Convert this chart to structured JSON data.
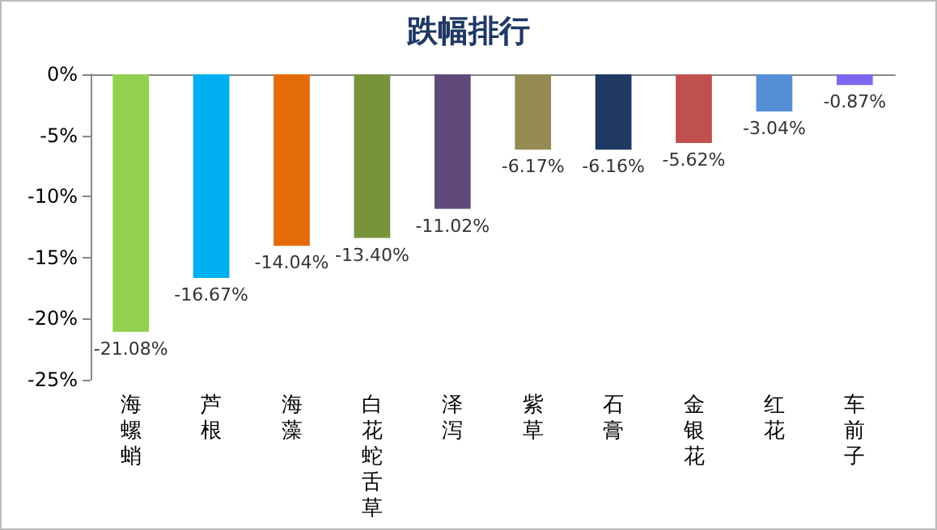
{
  "chart_data": {
    "type": "bar",
    "title": "跌幅排行",
    "categories": [
      "海螺蛸",
      "芦根",
      "海藻",
      "白花蛇舌草",
      "泽泻",
      "紫草",
      "石膏",
      "金银花",
      "红花",
      "车前子"
    ],
    "values": [
      -21.08,
      -16.67,
      -14.04,
      -13.4,
      -11.02,
      -6.17,
      -6.16,
      -5.62,
      -3.04,
      -0.87
    ],
    "value_labels": [
      "-21.08%",
      "-16.67%",
      "-14.04%",
      "-13.40%",
      "-11.02%",
      "-6.17%",
      "-6.16%",
      "-5.62%",
      "-3.04%",
      "-0.87%"
    ],
    "colors": [
      "#92d050",
      "#00b0f0",
      "#e36c09",
      "#77933c",
      "#604a7b",
      "#948a54",
      "#1f3864",
      "#c0504d",
      "#558ed5",
      "#7b68ee"
    ],
    "ylim": [
      -25,
      0
    ],
    "yticks": [
      {
        "value": 0,
        "label": "0%"
      },
      {
        "value": -5,
        "label": "-5%"
      },
      {
        "value": -10,
        "label": "-10%"
      },
      {
        "value": -15,
        "label": "-15%"
      },
      {
        "value": -20,
        "label": "-20%"
      },
      {
        "value": -25,
        "label": "-25%"
      }
    ],
    "grid": false
  }
}
